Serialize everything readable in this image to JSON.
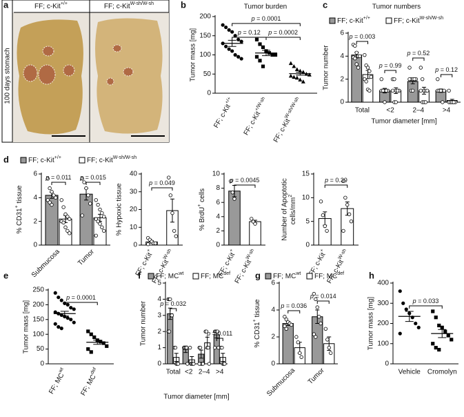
{
  "chart_data": [
    {
      "type": "photo",
      "panel": "a",
      "columns": [
        [
          "FF; c-Kit",
          {
            "text": "+/+",
            "sup": true
          }
        ],
        [
          "FF; c-Kit",
          {
            "text": "W-sh/W-sh",
            "sup": true
          }
        ]
      ],
      "ylabel": "100 days stomach"
    },
    {
      "type": "dot",
      "panel": "b",
      "title": "Tumor burden",
      "ylabel": "Tumor mass [mg]",
      "ylim": [
        0,
        200
      ],
      "yticks": [
        0,
        50,
        100,
        150,
        200
      ],
      "categories": [
        [
          "FF; c-Kit",
          {
            "text": "+/+",
            "sup": true
          }
        ],
        [
          "FF; c-Kit",
          {
            "text": "+/W-sh",
            "sup": true
          }
        ],
        [
          "FF; c-Kit",
          {
            "text": "W-sh/W-sh",
            "sup": true
          }
        ]
      ],
      "markers": [
        "circle",
        "square",
        "triangle"
      ],
      "values": [
        130,
        105,
        51
      ],
      "errors": [
        8,
        7,
        4
      ],
      "points": [
        [
          178,
          172,
          165,
          160,
          150,
          140,
          135,
          130,
          122,
          115,
          110,
          100,
          95,
          90
        ],
        [
          140,
          128,
          120,
          110,
          105,
          100,
          100,
          95,
          85,
          70
        ],
        [
          78,
          70,
          62,
          58,
          55,
          50,
          48,
          45,
          42,
          40,
          35,
          30
        ]
      ],
      "annotations": [
        [
          {
            "text": "p",
            "italic": true
          },
          " = 0.0001"
        ],
        [
          {
            "text": "p",
            "italic": true
          },
          " = 0.12"
        ],
        [
          {
            "text": "p",
            "italic": true
          },
          " = 0.0002"
        ]
      ]
    },
    {
      "type": "bar",
      "panel": "c",
      "title": "Tumor numbers",
      "ylabel": "Tumor number",
      "xlabel": "Tumor diameter [mm]",
      "ylim": [
        0,
        6
      ],
      "yticks": [
        0,
        2,
        4,
        6
      ],
      "categories": [
        "Total",
        "<2",
        "2–4",
        ">4"
      ],
      "series": [
        {
          "name": [
            "FF; c-Kit",
            {
              "text": "+/+",
              "sup": true
            }
          ],
          "color": "#999999",
          "values": [
            4.1,
            1.0,
            1.8,
            1.0
          ],
          "errors": [
            0.25,
            0.2,
            0.2,
            0.15
          ],
          "points": [
            [
              5,
              4.9,
              4.3,
              4,
              4,
              3.9,
              3.8,
              3.3,
              3
            ],
            [
              2,
              1,
              1,
              1,
              1,
              1,
              1,
              0,
              1
            ],
            [
              3,
              2,
              2,
              2,
              2,
              2,
              1,
              1,
              2
            ],
            [
              2,
              1,
              1,
              1,
              1,
              1,
              1,
              1,
              0
            ]
          ]
        },
        {
          "name": [
            "FF; c-Kit",
            {
              "text": "W-sh/W-sh",
              "sup": true
            }
          ],
          "color": "#ffffff",
          "values": [
            2.4,
            1.0,
            1.0,
            0.15
          ],
          "errors": [
            0.35,
            0.25,
            0.3,
            0.1
          ],
          "points": [
            [
              4.1,
              3.2,
              3,
              2.7,
              2.2,
              2,
              1.8,
              1.1,
              1
            ],
            [
              2,
              2,
              1,
              1,
              1,
              1,
              0,
              0,
              1
            ],
            [
              3,
              2,
              1,
              1,
              1,
              1,
              0,
              0,
              0
            ],
            [
              1,
              0,
              0,
              0,
              0,
              0,
              0,
              0,
              0
            ]
          ]
        }
      ],
      "annotations": [
        [
          {
            "text": "p",
            "italic": true
          },
          " = 0.003"
        ],
        [
          {
            "text": "p",
            "italic": true
          },
          " = 0.99"
        ],
        [
          {
            "text": "p",
            "italic": true
          },
          " = 0.52"
        ],
        [
          {
            "text": "p",
            "italic": true
          },
          " = 0.12"
        ]
      ]
    },
    {
      "type": "bar",
      "panel": "d",
      "ylabel": [
        "% CD31",
        {
          "text": "+",
          "sup": true
        },
        " tissue"
      ],
      "ylim": [
        0,
        6
      ],
      "yticks": [
        0,
        2,
        4,
        6
      ],
      "categories": [
        "Submucosa",
        "Tumor"
      ],
      "series": [
        {
          "name": [
            "FF; c-Kit",
            {
              "text": "+/+",
              "sup": true
            }
          ],
          "color": "#999999",
          "values": [
            4.2,
            4.3
          ],
          "errors": [
            0.25,
            0.5
          ],
          "points": [
            [
              5.6,
              4.8,
              4.5,
              4.2,
              4,
              3.8,
              3.6,
              3.4
            ],
            [
              5.6,
              5.3,
              4.8,
              4.2,
              3.5,
              2.5
            ]
          ]
        },
        {
          "name": [
            "FF; c-Kit",
            {
              "text": "W-sh/W-sh",
              "sup": true
            }
          ],
          "color": "#ffffff",
          "values": [
            2.2,
            2.3
          ],
          "errors": [
            0.3,
            0.3
          ],
          "points": [
            [
              3.8,
              3.2,
              2.6,
              2.4,
              2.2,
              2,
              1.9,
              1.5,
              1.2,
              1
            ],
            [
              3.8,
              3.4,
              3,
              2.7,
              2.4,
              2.2,
              2,
              1.8,
              1.5,
              1.2,
              0.8
            ]
          ]
        }
      ],
      "annotations": [
        [
          {
            "text": "p",
            "italic": true
          },
          " = 0.011"
        ],
        [
          {
            "text": "p",
            "italic": true
          },
          " = 0.015"
        ]
      ]
    },
    {
      "type": "bar",
      "ylabel": "% Hypoxic tissue",
      "ylim": [
        0,
        40
      ],
      "yticks": [
        0,
        10,
        20,
        30,
        40
      ],
      "categories": [
        [
          "FF; c-Kit",
          {
            "text": "+",
            "sup": true
          }
        ],
        [
          "FF; c-Kit",
          {
            "text": "W-sh",
            "sup": true
          }
        ]
      ],
      "colors": [
        "#ffffff",
        "#ffffff"
      ],
      "values": [
        1.8,
        19.4
      ],
      "errors": [
        0.7,
        6.5
      ],
      "points": [
        [
          4,
          3,
          2,
          1,
          1,
          0.5
        ],
        [
          38,
          28,
          18,
          8,
          5
        ]
      ],
      "annotations": [
        [
          {
            "text": "p",
            "italic": true
          },
          " = 0.049"
        ]
      ]
    },
    {
      "type": "bar",
      "ylabel": [
        "% BrdU",
        {
          "text": "+",
          "sup": true
        },
        " cells"
      ],
      "ylim": [
        0,
        10
      ],
      "yticks": [
        0,
        2,
        4,
        6,
        8,
        10
      ],
      "categories": [
        [
          "FF; c-Kit",
          {
            "text": "+",
            "sup": true
          }
        ],
        [
          "FF; c-Kit",
          {
            "text": "W-sh",
            "sup": true
          }
        ]
      ],
      "colors": [
        "#999999",
        "#ffffff"
      ],
      "values": [
        7.6,
        3.3
      ],
      "errors": [
        0.8,
        0.2
      ],
      "points": [
        [
          9,
          7.4,
          6.5
        ],
        [
          3.7,
          3.3,
          3.0
        ]
      ],
      "annotations": [
        [
          {
            "text": "p",
            "italic": true
          },
          " = 0.0045"
        ]
      ]
    },
    {
      "type": "bar",
      "ylabel": "Number of Apoptotic",
      "ylabel2": [
        "cells/mm",
        {
          "text": "2",
          "sup": true
        }
      ],
      "ylim": [
        0,
        15
      ],
      "yticks": [
        0,
        5,
        10,
        15
      ],
      "categories": [
        [
          "FF; c-Kit",
          {
            "text": "+",
            "sup": true
          }
        ],
        [
          "FF; c-Kit",
          {
            "text": "W-sh",
            "sup": true
          }
        ]
      ],
      "colors": [
        "#ffffff",
        "#ffffff"
      ],
      "values": [
        5.6,
        7.7
      ],
      "errors": [
        1.4,
        1.4
      ],
      "points": [
        [
          9.2,
          6.3,
          4,
          3
        ],
        [
          13.5,
          10,
          8.5,
          6.5,
          5,
          3
        ]
      ],
      "annotations": [
        [
          {
            "text": "p",
            "italic": true
          },
          " = 0.39"
        ]
      ]
    },
    {
      "type": "dot",
      "panel": "e",
      "ylabel": "Tumor mass [mg]",
      "ylim": [
        0,
        250
      ],
      "yticks": [
        0,
        50,
        100,
        150,
        200,
        250
      ],
      "categories": [
        [
          "FF; MC",
          {
            "text": "wt",
            "sup": true
          }
        ],
        [
          "FF; MC",
          {
            "text": "def",
            "sup": true
          }
        ]
      ],
      "markers": [
        "circle",
        "square"
      ],
      "values": [
        170,
        73
      ],
      "errors": [
        8,
        7
      ],
      "points": [
        [
          240,
          225,
          215,
          205,
          200,
          190,
          185,
          175,
          170,
          165,
          160,
          155,
          150,
          140,
          135,
          125,
          120
        ],
        [
          110,
          100,
          90,
          80,
          75,
          70,
          60,
          50,
          40
        ]
      ],
      "annotations": [
        [
          {
            "text": "p",
            "italic": true
          },
          " = 0.0001"
        ]
      ]
    },
    {
      "type": "bar",
      "panel": "f",
      "ylabel": "Tumor number",
      "xlabel": "Tumor diameter [mm]",
      "ylim": [
        0,
        5
      ],
      "yticks": [
        0,
        1,
        2,
        3,
        4,
        5
      ],
      "categories": [
        "Total",
        "<2",
        "2–4",
        ">4"
      ],
      "series": [
        {
          "name": [
            "FF; MC",
            {
              "text": "wt",
              "sup": true
            }
          ],
          "color": "#999999",
          "values": [
            3.1,
            0.9,
            0.6,
            1.8
          ],
          "errors": [
            0.35,
            0.2,
            0.25,
            0.2
          ],
          "points": [
            [
              4,
              4,
              4,
              3,
              3,
              2,
              2
            ],
            [
              1,
              1,
              1,
              1,
              0
            ],
            [
              1,
              1,
              0,
              0,
              0,
              0
            ],
            [
              2,
              2,
              2,
              2,
              1,
              1
            ]
          ]
        },
        {
          "name": [
            "FF; MC",
            {
              "text": "def",
              "sup": true
            }
          ],
          "color": "#ffffff",
          "values": [
            0.4,
            0.25,
            1.3,
            0.4
          ],
          "errors": [
            0.25,
            0.2,
            0.35,
            0.25
          ],
          "points": [
            [
              1,
              1,
              0,
              0,
              0
            ],
            [
              1,
              0,
              0,
              0,
              0
            ],
            [
              2,
              2,
              1,
              1,
              0
            ],
            [
              1,
              1,
              0,
              0,
              0
            ]
          ]
        }
      ],
      "annotations": [
        [
          {
            "text": "p",
            "italic": true
          },
          " = 0.032"
        ],
        [
          {
            "text": "p",
            "italic": true
          },
          " = 0.011"
        ]
      ]
    },
    {
      "type": "bar",
      "panel": "g",
      "ylabel": [
        "% CD31",
        {
          "text": "+",
          "sup": true
        },
        " tissue"
      ],
      "ylim": [
        0,
        6
      ],
      "yticks": [
        0,
        2,
        4,
        6
      ],
      "categories": [
        "Submucosa",
        "Tumor"
      ],
      "series": [
        {
          "name": [
            "FF; MC",
            {
              "text": "wt",
              "sup": true
            }
          ],
          "color": "#999999",
          "values": [
            3.0,
            3.5
          ],
          "errors": [
            0.15,
            0.5
          ],
          "points": [
            [
              3.5,
              3.3,
              3.1,
              3,
              2.9,
              2.8,
              2.6
            ],
            [
              5.2,
              4.8,
              4.2,
              3.5,
              3,
              2.2,
              2
            ]
          ]
        },
        {
          "name": [
            "FF; MC",
            {
              "text": "def",
              "sup": true
            }
          ],
          "color": "#ffffff",
          "values": [
            1.2,
            1.5
          ],
          "errors": [
            0.4,
            0.5
          ],
          "points": [
            [
              2,
              1.6,
              0.8,
              0.5
            ],
            [
              2.6,
              1.8,
              1.2,
              0.8
            ]
          ]
        }
      ],
      "annotations": [
        [
          {
            "text": "p",
            "italic": true
          },
          " = 0.036"
        ],
        [
          {
            "text": "p",
            "italic": true
          },
          " = 0.014"
        ]
      ]
    },
    {
      "type": "dot",
      "panel": "h",
      "ylabel": "Tumor mass [mg]",
      "ylim": [
        0,
        400
      ],
      "yticks": [
        0,
        100,
        200,
        300,
        400
      ],
      "categories": [
        "Vehicle",
        "Cromolyn"
      ],
      "markers": [
        "circle",
        "square"
      ],
      "values": [
        235,
        150
      ],
      "errors": [
        25,
        20
      ],
      "points": [
        [
          360,
          300,
          270,
          250,
          230,
          200,
          180,
          150
        ],
        [
          260,
          230,
          190,
          180,
          160,
          140,
          120,
          100,
          80,
          70
        ]
      ],
      "annotations": [
        [
          {
            "text": "p",
            "italic": true
          },
          " = 0.033"
        ]
      ]
    }
  ]
}
